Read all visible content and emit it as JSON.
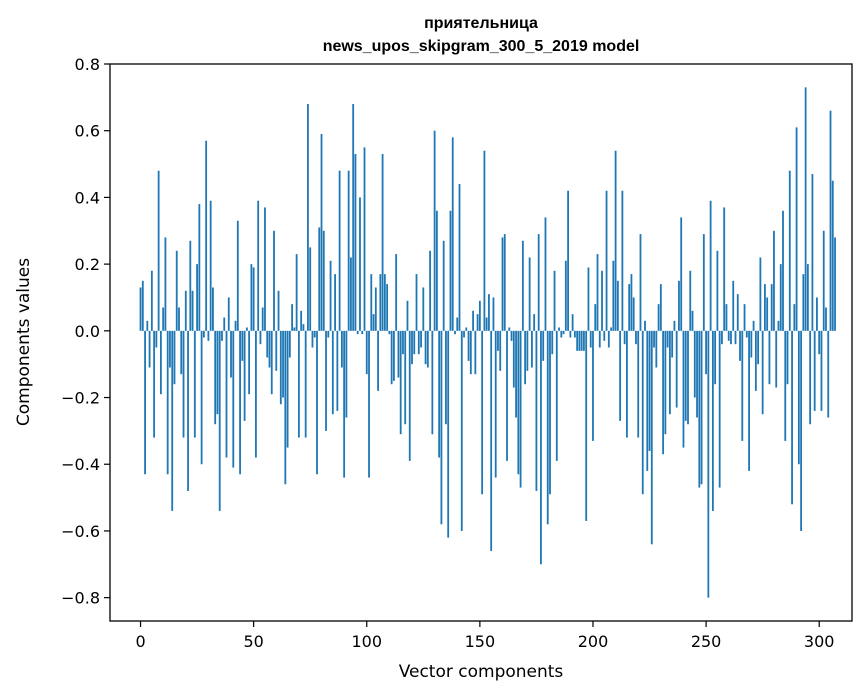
{
  "chart_data": {
    "type": "bar",
    "title": "приятельница",
    "subtitle": "news_upos_skipgram_300_5_2019 model",
    "xlabel": "Vector components",
    "ylabel": "Components values",
    "xlim": [
      -13.5,
      314.5
    ],
    "ylim": [
      -0.87,
      0.8
    ],
    "xticks": [
      0,
      50,
      100,
      150,
      200,
      250,
      300
    ],
    "yticks": [
      -0.8,
      -0.6,
      -0.4,
      -0.2,
      0.0,
      0.2,
      0.4,
      0.6,
      0.8
    ],
    "ytick_labels": [
      "−0.8",
      "−0.6",
      "−0.4",
      "−0.2",
      "0.0",
      "0.2",
      "0.4",
      "0.6",
      "0.8"
    ],
    "grid": false,
    "bar_color": "#1f77b4",
    "values": [
      0.13,
      0.15,
      -0.43,
      0.03,
      -0.11,
      0.18,
      -0.32,
      -0.05,
      0.48,
      -0.19,
      0.07,
      0.28,
      -0.43,
      -0.11,
      -0.54,
      -0.16,
      0.24,
      0.07,
      -0.13,
      -0.32,
      0.12,
      -0.48,
      0.27,
      0.12,
      -0.32,
      0.2,
      0.38,
      -0.4,
      -0.02,
      0.57,
      -0.03,
      0.39,
      0.13,
      -0.28,
      -0.25,
      -0.54,
      -0.03,
      0.04,
      -0.38,
      0.1,
      -0.14,
      -0.41,
      0.03,
      0.33,
      -0.43,
      -0.09,
      -0.27,
      0.01,
      -0.19,
      0.2,
      0.19,
      -0.38,
      0.39,
      -0.04,
      0.07,
      0.37,
      -0.08,
      -0.11,
      -0.19,
      0.3,
      -0.12,
      0.12,
      -0.22,
      -0.2,
      -0.46,
      -0.35,
      -0.08,
      0.08,
      0.01,
      0.23,
      -0.32,
      0.06,
      0.02,
      -0.32,
      0.68,
      0.25,
      -0.05,
      -0.02,
      -0.43,
      0.31,
      0.59,
      0.3,
      -0.3,
      -0.02,
      0.21,
      -0.25,
      0.17,
      -0.24,
      0.48,
      -0.11,
      -0.44,
      -0.26,
      0.48,
      0.22,
      0.68,
      0.53,
      -0.01,
      0.4,
      -0.01,
      0.55,
      -0.13,
      -0.44,
      0.17,
      0.05,
      0.13,
      -0.18,
      0.17,
      0.53,
      0.17,
      0.14,
      -0.01,
      -0.16,
      -0.15,
      0.23,
      -0.14,
      -0.31,
      -0.07,
      -0.28,
      0.09,
      -0.39,
      -0.1,
      -0.07,
      0.17,
      -0.07,
      -0.05,
      0.13,
      -0.1,
      -0.11,
      0.24,
      -0.31,
      0.6,
      0.36,
      -0.38,
      -0.58,
      0.27,
      -0.28,
      -0.62,
      0.36,
      0.58,
      -0.01,
      0.04,
      0.44,
      -0.6,
      -0.02,
      0.01,
      -0.09,
      -0.13,
      0.06,
      -0.13,
      0.05,
      0.09,
      -0.49,
      0.54,
      0.04,
      0.11,
      -0.66,
      0.1,
      -0.44,
      -0.06,
      -0.12,
      0.28,
      0.29,
      -0.39,
      0.01,
      -0.03,
      -0.17,
      -0.26,
      -0.43,
      -0.47,
      0.27,
      -0.16,
      -0.12,
      0.22,
      -0.11,
      0.05,
      -0.48,
      0.29,
      -0.7,
      -0.09,
      0.34,
      -0.58,
      -0.49,
      -0.07,
      0.18,
      -0.39,
      0.01,
      -0.02,
      -0.01,
      0.21,
      0.42,
      -0.02,
      0.05,
      -0.02,
      -0.06,
      -0.06,
      -0.06,
      -0.06,
      -0.57,
      0.19,
      -0.05,
      -0.33,
      0.08,
      0.23,
      -0.05,
      0.18,
      -0.03,
      0.42,
      -0.05,
      0.01,
      0.21,
      0.54,
      0.15,
      -0.27,
      0.42,
      -0.04,
      -0.32,
      0.14,
      0.17,
      0.1,
      -0.04,
      -0.32,
      0.29,
      -0.49,
      0.03,
      -0.42,
      -0.36,
      -0.64,
      -0.05,
      -0.11,
      0.08,
      0.14,
      -0.37,
      -0.31,
      -0.05,
      -0.25,
      -0.08,
      0.03,
      -0.23,
      0.15,
      0.34,
      -0.35,
      -0.27,
      -0.28,
      0.18,
      0.06,
      -0.2,
      -0.26,
      -0.47,
      -0.46,
      0.29,
      -0.13,
      -0.8,
      0.39,
      -0.54,
      -0.16,
      0.24,
      -0.47,
      -0.04,
      0.37,
      0.08,
      -0.03,
      -0.04,
      0.15,
      -0.04,
      0.11,
      -0.09,
      -0.33,
      0.08,
      -0.02,
      -0.42,
      -0.08,
      0.03,
      -0.18,
      -0.1,
      0.22,
      -0.25,
      0.14,
      0.1,
      -0.16,
      0.14,
      0.3,
      -0.17,
      0.03,
      0.2,
      0.36,
      -0.33,
      -0.16,
      0.48,
      -0.52,
      0.08,
      0.61,
      -0.4,
      -0.6,
      0.17,
      0.73,
      0.2,
      -0.28,
      0.47,
      -0.24,
      0.1,
      -0.07,
      -0.24,
      0.3,
      0.07,
      -0.26,
      0.66,
      0.45,
      0.28
    ]
  }
}
